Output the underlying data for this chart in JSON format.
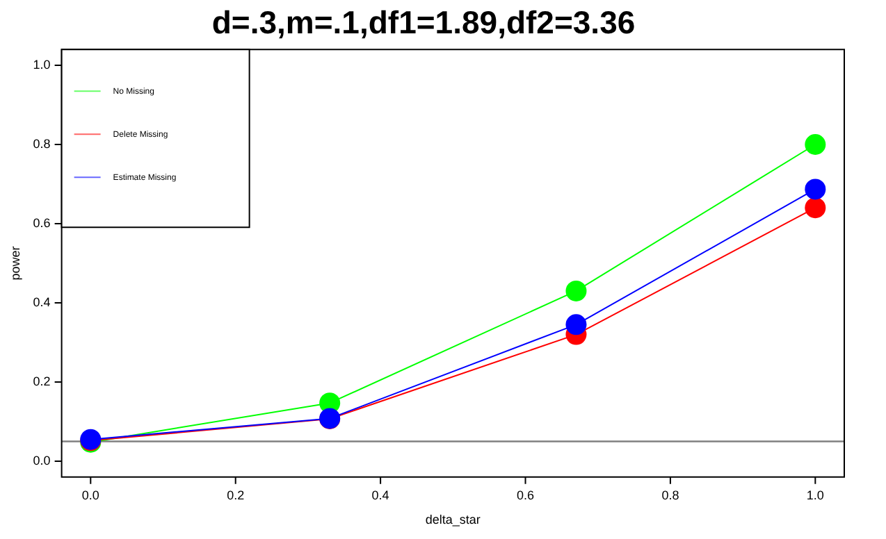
{
  "chart_data": {
    "type": "line",
    "title": "d=.3,m=.1,df1=1.89,df2=3.36",
    "xlabel": "delta_star",
    "ylabel": "power",
    "x": [
      0,
      0.33,
      0.67,
      1
    ],
    "series": [
      {
        "name": "No Missing",
        "color": "#00ff00",
        "values": [
          0.048,
          0.147,
          0.43,
          0.8
        ]
      },
      {
        "name": "Delete Missing",
        "color": "#ff0000",
        "values": [
          0.052,
          0.107,
          0.32,
          0.64
        ]
      },
      {
        "name": "Estimate Missing",
        "color": "#0000ff",
        "values": [
          0.055,
          0.108,
          0.345,
          0.687
        ]
      }
    ],
    "xlim": [
      -0.04,
      1.04
    ],
    "xticks": [
      {
        "value": 0,
        "label": "0.0"
      },
      0.2,
      0.4,
      0.6,
      0.8,
      {
        "value": 1,
        "label": "1.0"
      }
    ],
    "ylim": [
      -0.04,
      1.04
    ],
    "yticks": [
      {
        "value": 0,
        "label": "0.0"
      },
      0.2,
      0.4,
      0.6,
      0.8,
      {
        "value": 1,
        "label": "1.0"
      }
    ],
    "ref_lines": [
      {
        "axis": "y",
        "value": 0.05,
        "color": "#808080"
      }
    ],
    "marker": "circle",
    "line_style": "solid",
    "legend": "top left",
    "grid": false
  }
}
